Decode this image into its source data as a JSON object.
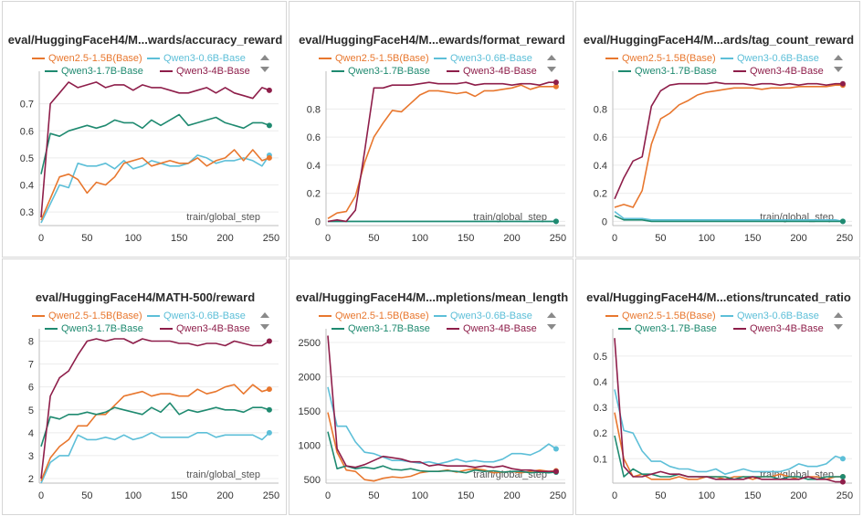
{
  "colors": {
    "Qwen2.5-1.5B(Base)": "#e8772e",
    "Qwen3-0.6B-Base": "#5dbfd8",
    "Qwen3-1.7B-Base": "#1f8a70",
    "Qwen3-4B-Base": "#8e1e4a"
  },
  "chart_data": [
    {
      "type": "line",
      "title": "eval/HuggingFaceH4/M...wards/accuracy_reward",
      "xlabel": "train/global_step",
      "xlim": [
        -2,
        258
      ],
      "ylim": [
        0.25,
        0.8
      ],
      "xticks": [
        0,
        50,
        100,
        150,
        200,
        250
      ],
      "yticks": [
        0.3,
        0.4,
        0.5,
        0.6,
        0.7
      ],
      "ytick_labels": [
        "0.3",
        "0.4",
        "0.5",
        "0.6",
        "0.7"
      ],
      "x": [
        0,
        10,
        20,
        30,
        40,
        50,
        60,
        70,
        80,
        90,
        100,
        110,
        120,
        130,
        140,
        150,
        160,
        170,
        180,
        190,
        200,
        210,
        220,
        230,
        240,
        248
      ],
      "series": [
        {
          "name": "Qwen2.5-1.5B(Base)",
          "values": [
            0.27,
            0.35,
            0.43,
            0.44,
            0.42,
            0.37,
            0.41,
            0.4,
            0.43,
            0.48,
            0.49,
            0.5,
            0.47,
            0.48,
            0.49,
            0.48,
            0.48,
            0.5,
            0.47,
            0.49,
            0.5,
            0.53,
            0.49,
            0.53,
            0.49,
            0.5
          ]
        },
        {
          "name": "Qwen3-0.6B-Base",
          "values": [
            0.26,
            0.33,
            0.4,
            0.39,
            0.48,
            0.47,
            0.47,
            0.48,
            0.46,
            0.49,
            0.46,
            0.47,
            0.49,
            0.48,
            0.47,
            0.47,
            0.48,
            0.51,
            0.5,
            0.48,
            0.49,
            0.49,
            0.5,
            0.49,
            0.47,
            0.51
          ]
        },
        {
          "name": "Qwen3-1.7B-Base",
          "values": [
            0.44,
            0.59,
            0.58,
            0.6,
            0.61,
            0.62,
            0.61,
            0.62,
            0.64,
            0.63,
            0.63,
            0.61,
            0.64,
            0.62,
            0.64,
            0.66,
            0.62,
            0.63,
            0.64,
            0.65,
            0.63,
            0.62,
            0.61,
            0.63,
            0.63,
            0.62
          ]
        },
        {
          "name": "Qwen3-4B-Base",
          "values": [
            0.28,
            0.7,
            0.74,
            0.78,
            0.76,
            0.77,
            0.78,
            0.76,
            0.77,
            0.77,
            0.75,
            0.77,
            0.76,
            0.76,
            0.75,
            0.74,
            0.74,
            0.75,
            0.76,
            0.74,
            0.76,
            0.74,
            0.73,
            0.72,
            0.76,
            0.75
          ]
        }
      ]
    },
    {
      "type": "line",
      "title": "eval/HuggingFaceH4/M...ewards/format_reward",
      "xlabel": "train/global_step",
      "xlim": [
        -2,
        258
      ],
      "ylim": [
        -0.03,
        1.03
      ],
      "xticks": [
        0,
        50,
        100,
        150,
        200,
        250
      ],
      "yticks": [
        0,
        0.2,
        0.4,
        0.6,
        0.8
      ],
      "ytick_labels": [
        "0",
        "0.2",
        "0.4",
        "0.6",
        "0.8"
      ],
      "x": [
        0,
        10,
        20,
        30,
        40,
        50,
        60,
        70,
        80,
        90,
        100,
        110,
        120,
        130,
        140,
        150,
        160,
        170,
        180,
        190,
        200,
        210,
        220,
        230,
        240,
        248
      ],
      "series": [
        {
          "name": "Qwen2.5-1.5B(Base)",
          "values": [
            0.02,
            0.06,
            0.07,
            0.18,
            0.42,
            0.6,
            0.7,
            0.79,
            0.78,
            0.84,
            0.9,
            0.93,
            0.93,
            0.92,
            0.91,
            0.92,
            0.89,
            0.93,
            0.93,
            0.94,
            0.95,
            0.97,
            0.94,
            0.96,
            0.96,
            0.96
          ]
        },
        {
          "name": "Qwen3-0.6B-Base",
          "values": [
            0.0,
            0.0,
            0.0,
            0.0,
            0.0,
            0.0,
            0.0,
            0.0,
            0.0,
            0.0,
            0.0,
            0.0,
            0.0,
            0.0,
            0.0,
            0.0,
            0.0,
            0.0,
            0.0,
            0.0,
            0.0,
            0.0,
            0.0,
            0.0,
            0.0,
            0.0
          ]
        },
        {
          "name": "Qwen3-1.7B-Base",
          "values": [
            0.0,
            0.0,
            0.0,
            0.0,
            0.0,
            0.0,
            0.0,
            0.0,
            0.0,
            0.0,
            0.0,
            0.0,
            0.0,
            0.0,
            0.0,
            0.0,
            0.0,
            0.0,
            0.0,
            0.0,
            0.0,
            0.0,
            0.0,
            0.0,
            0.0,
            0.0
          ]
        },
        {
          "name": "Qwen3-4B-Base",
          "values": [
            0.0,
            0.01,
            0.0,
            0.08,
            0.5,
            0.95,
            0.95,
            0.97,
            0.97,
            0.97,
            0.98,
            0.99,
            0.98,
            0.98,
            0.98,
            0.99,
            0.97,
            0.98,
            0.98,
            0.98,
            0.97,
            0.98,
            0.98,
            0.97,
            0.99,
            0.99
          ]
        }
      ]
    },
    {
      "type": "line",
      "title": "eval/HuggingFaceH4/M...ards/tag_count_reward",
      "xlabel": "train/global_step",
      "xlim": [
        -2,
        258
      ],
      "ylim": [
        -0.03,
        1.03
      ],
      "xticks": [
        0,
        50,
        100,
        150,
        200,
        250
      ],
      "yticks": [
        0,
        0.2,
        0.4,
        0.6,
        0.8
      ],
      "ytick_labels": [
        "0",
        "0.2",
        "0.4",
        "0.6",
        "0.8"
      ],
      "x": [
        0,
        10,
        20,
        30,
        40,
        50,
        60,
        70,
        80,
        90,
        100,
        110,
        120,
        130,
        140,
        150,
        160,
        170,
        180,
        190,
        200,
        210,
        220,
        230,
        240,
        248
      ],
      "series": [
        {
          "name": "Qwen2.5-1.5B(Base)",
          "values": [
            0.1,
            0.12,
            0.1,
            0.22,
            0.55,
            0.73,
            0.77,
            0.83,
            0.86,
            0.9,
            0.92,
            0.93,
            0.94,
            0.95,
            0.95,
            0.95,
            0.94,
            0.95,
            0.95,
            0.95,
            0.96,
            0.96,
            0.96,
            0.96,
            0.97,
            0.97
          ]
        },
        {
          "name": "Qwen3-0.6B-Base",
          "values": [
            0.07,
            0.02,
            0.02,
            0.02,
            0.01,
            0.01,
            0.01,
            0.01,
            0.01,
            0.01,
            0.01,
            0.01,
            0.01,
            0.01,
            0.01,
            0.01,
            0.01,
            0.01,
            0.01,
            0.01,
            0.01,
            0.01,
            0.01,
            0.01,
            0.01,
            0.0
          ]
        },
        {
          "name": "Qwen3-1.7B-Base",
          "values": [
            0.04,
            0.01,
            0.01,
            0.01,
            0.0,
            0.0,
            0.0,
            0.0,
            0.0,
            0.0,
            0.0,
            0.0,
            0.0,
            0.0,
            0.0,
            0.0,
            0.0,
            0.0,
            0.0,
            0.0,
            0.0,
            0.0,
            0.0,
            0.0,
            0.0,
            0.0
          ]
        },
        {
          "name": "Qwen3-4B-Base",
          "values": [
            0.16,
            0.31,
            0.43,
            0.46,
            0.82,
            0.93,
            0.97,
            0.98,
            0.98,
            0.98,
            0.98,
            0.99,
            0.98,
            0.98,
            0.98,
            0.97,
            0.98,
            0.98,
            0.97,
            0.98,
            0.97,
            0.98,
            0.98,
            0.97,
            0.98,
            0.98
          ]
        }
      ]
    },
    {
      "type": "line",
      "title": "eval/HuggingFaceH4/MATH-500/reward",
      "xlabel": "train/global_step",
      "xlim": [
        -2,
        258
      ],
      "ylim": [
        1.8,
        8.3
      ],
      "xticks": [
        0,
        50,
        100,
        150,
        200,
        250
      ],
      "yticks": [
        2,
        3,
        4,
        5,
        6,
        7,
        8
      ],
      "ytick_labels": [
        "2",
        "3",
        "4",
        "5",
        "6",
        "7",
        "8"
      ],
      "x": [
        0,
        10,
        20,
        30,
        40,
        50,
        60,
        70,
        80,
        90,
        100,
        110,
        120,
        130,
        140,
        150,
        160,
        170,
        180,
        190,
        200,
        210,
        220,
        230,
        240,
        248
      ],
      "series": [
        {
          "name": "Qwen2.5-1.5B(Base)",
          "values": [
            1.9,
            2.9,
            3.4,
            3.7,
            4.3,
            4.3,
            4.8,
            4.8,
            5.2,
            5.6,
            5.7,
            5.8,
            5.6,
            5.7,
            5.7,
            5.6,
            5.6,
            5.9,
            5.7,
            5.8,
            6.0,
            6.1,
            5.7,
            6.1,
            5.8,
            5.9
          ]
        },
        {
          "name": "Qwen3-0.6B-Base",
          "values": [
            1.8,
            2.7,
            3.0,
            3.0,
            3.9,
            3.7,
            3.7,
            3.8,
            3.7,
            3.9,
            3.7,
            3.8,
            4.0,
            3.8,
            3.8,
            3.8,
            3.8,
            4.0,
            4.0,
            3.8,
            3.9,
            3.9,
            3.9,
            3.9,
            3.7,
            4.0
          ]
        },
        {
          "name": "Qwen3-1.7B-Base",
          "values": [
            3.4,
            4.7,
            4.6,
            4.8,
            4.8,
            4.9,
            4.8,
            4.9,
            5.1,
            5.0,
            4.9,
            4.8,
            5.1,
            4.9,
            5.3,
            4.8,
            5.0,
            4.9,
            5.0,
            5.1,
            5.0,
            5.0,
            4.9,
            5.1,
            5.1,
            5.0
          ]
        },
        {
          "name": "Qwen3-4B-Base",
          "values": [
            2.0,
            5.6,
            6.4,
            6.7,
            7.4,
            8.0,
            8.1,
            8.0,
            8.1,
            8.1,
            7.9,
            8.1,
            8.0,
            8.0,
            8.0,
            7.9,
            7.9,
            7.8,
            7.9,
            7.9,
            7.8,
            8.0,
            7.9,
            7.8,
            7.8,
            8.0
          ]
        }
      ]
    },
    {
      "type": "line",
      "title": "eval/HuggingFaceH4/M...mpletions/mean_length",
      "xlabel": "train/global_step",
      "xlim": [
        -2,
        258
      ],
      "ylim": [
        450,
        2620
      ],
      "xticks": [
        0,
        50,
        100,
        150,
        200,
        250
      ],
      "yticks": [
        500,
        1000,
        1500,
        2000,
        2500
      ],
      "ytick_labels": [
        "500",
        "1000",
        "1500",
        "2000",
        "2500"
      ],
      "x": [
        0,
        10,
        20,
        30,
        40,
        50,
        60,
        70,
        80,
        90,
        100,
        110,
        120,
        130,
        140,
        150,
        160,
        170,
        180,
        190,
        200,
        210,
        220,
        230,
        240,
        248
      ],
      "series": [
        {
          "name": "Qwen2.5-1.5B(Base)",
          "values": [
            1480,
            900,
            640,
            620,
            500,
            480,
            520,
            540,
            530,
            550,
            600,
            620,
            620,
            640,
            610,
            640,
            660,
            640,
            600,
            610,
            620,
            600,
            620,
            640,
            620,
            630
          ]
        },
        {
          "name": "Qwen3-0.6B-Base",
          "values": [
            1850,
            1280,
            1280,
            1050,
            900,
            880,
            830,
            780,
            780,
            760,
            740,
            760,
            730,
            760,
            800,
            760,
            780,
            760,
            760,
            800,
            880,
            880,
            860,
            920,
            1020,
            950
          ]
        },
        {
          "name": "Qwen3-1.7B-Base",
          "values": [
            1200,
            660,
            700,
            660,
            680,
            660,
            700,
            650,
            640,
            660,
            630,
            620,
            620,
            630,
            620,
            600,
            640,
            620,
            630,
            610,
            620,
            620,
            600,
            610,
            600,
            610
          ]
        },
        {
          "name": "Qwen3-4B-Base",
          "values": [
            2600,
            950,
            700,
            680,
            720,
            780,
            840,
            820,
            800,
            760,
            760,
            700,
            720,
            700,
            700,
            700,
            680,
            700,
            680,
            700,
            660,
            640,
            640,
            620,
            620,
            620
          ]
        }
      ]
    },
    {
      "type": "line",
      "title": "eval/HuggingFaceH4/M...etions/truncated_ratio",
      "xlabel": "train/global_step",
      "xlim": [
        -2,
        258
      ],
      "ylim": [
        0.005,
        0.585
      ],
      "xticks": [
        0,
        50,
        100,
        150,
        200,
        250
      ],
      "yticks": [
        0.1,
        0.2,
        0.3,
        0.4,
        0.5
      ],
      "ytick_labels": [
        "0.1",
        "0.2",
        "0.3",
        "0.4",
        "0.5"
      ],
      "x": [
        0,
        10,
        20,
        30,
        40,
        50,
        60,
        70,
        80,
        90,
        100,
        110,
        120,
        130,
        140,
        150,
        160,
        170,
        180,
        190,
        200,
        210,
        220,
        230,
        240,
        248
      ],
      "series": [
        {
          "name": "Qwen2.5-1.5B(Base)",
          "values": [
            0.28,
            0.1,
            0.03,
            0.04,
            0.02,
            0.02,
            0.02,
            0.03,
            0.02,
            0.02,
            0.03,
            0.03,
            0.02,
            0.03,
            0.03,
            0.02,
            0.03,
            0.03,
            0.04,
            0.03,
            0.02,
            0.03,
            0.03,
            0.02,
            0.03,
            0.03
          ]
        },
        {
          "name": "Qwen3-0.6B-Base",
          "values": [
            0.37,
            0.21,
            0.2,
            0.13,
            0.09,
            0.09,
            0.07,
            0.06,
            0.06,
            0.05,
            0.05,
            0.06,
            0.04,
            0.05,
            0.06,
            0.05,
            0.05,
            0.05,
            0.05,
            0.06,
            0.08,
            0.07,
            0.07,
            0.08,
            0.11,
            0.1
          ]
        },
        {
          "name": "Qwen3-1.7B-Base",
          "values": [
            0.19,
            0.03,
            0.06,
            0.04,
            0.04,
            0.03,
            0.03,
            0.04,
            0.03,
            0.03,
            0.03,
            0.03,
            0.03,
            0.02,
            0.03,
            0.03,
            0.03,
            0.03,
            0.02,
            0.03,
            0.03,
            0.02,
            0.02,
            0.03,
            0.03,
            0.03
          ]
        },
        {
          "name": "Qwen3-4B-Base",
          "values": [
            0.57,
            0.07,
            0.03,
            0.03,
            0.04,
            0.05,
            0.04,
            0.04,
            0.03,
            0.03,
            0.03,
            0.02,
            0.02,
            0.02,
            0.02,
            0.03,
            0.02,
            0.02,
            0.02,
            0.02,
            0.02,
            0.03,
            0.02,
            0.02,
            0.01,
            0.01
          ]
        }
      ]
    }
  ]
}
